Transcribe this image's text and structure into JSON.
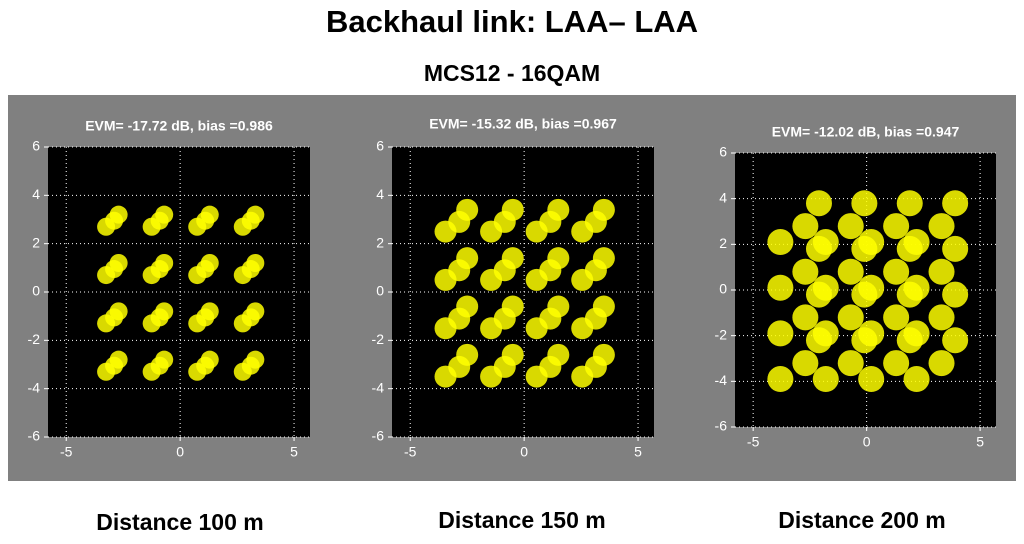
{
  "title": "Backhaul link: LAA– LAA",
  "subtitle": "MCS12 - 16QAM",
  "chart_data": [
    {
      "type": "scatter",
      "title": "EVM= -17.72 dB, bias =0.986",
      "xlabel": "Distance 100 m",
      "color": "#ffff00",
      "xlim": [
        -5.8,
        5.7
      ],
      "ylim": [
        -6,
        6
      ],
      "xticks": [
        -5,
        0,
        5
      ],
      "yticks": [
        -6,
        -4,
        -2,
        0,
        2,
        4,
        6
      ],
      "grid": true,
      "x": [
        -2.7,
        -3.25,
        -2.9,
        -0.7,
        -1.25,
        -0.9,
        1.3,
        0.75,
        1.1,
        3.3,
        2.75,
        3.1,
        -2.7,
        -3.25,
        -2.9,
        -0.7,
        -1.25,
        -0.9,
        1.3,
        0.75,
        1.1,
        3.3,
        2.75,
        3.1,
        -2.7,
        -3.25,
        -2.9,
        -0.7,
        -1.25,
        -0.9,
        1.3,
        0.75,
        1.1,
        3.3,
        2.75,
        3.1,
        -2.7,
        -3.25,
        -2.9,
        -0.7,
        -1.25,
        -0.9,
        1.3,
        0.75,
        1.1,
        3.3,
        2.75,
        3.1
      ],
      "y": [
        3.2,
        2.7,
        2.95,
        3.2,
        2.7,
        2.95,
        3.2,
        2.7,
        2.95,
        3.2,
        2.7,
        2.95,
        1.2,
        0.7,
        0.95,
        1.2,
        0.7,
        0.95,
        1.2,
        0.7,
        0.95,
        1.2,
        0.7,
        0.95,
        -0.8,
        -1.3,
        -1.05,
        -0.8,
        -1.3,
        -1.05,
        -0.8,
        -1.3,
        -1.05,
        -0.8,
        -1.3,
        -1.05,
        -2.8,
        -3.3,
        -3.05,
        -2.8,
        -3.3,
        -3.05,
        -2.8,
        -3.3,
        -3.05,
        -2.8,
        -3.3,
        -3.05
      ]
    },
    {
      "type": "scatter",
      "title": "EVM= -15.32 dB, bias =0.967",
      "xlabel": "Distance 150 m",
      "color": "#ffff00",
      "xlim": [
        -5.8,
        5.7
      ],
      "ylim": [
        -6,
        6
      ],
      "xticks": [
        -5,
        0,
        5
      ],
      "yticks": [
        -6,
        -4,
        -2,
        0,
        2,
        4,
        6
      ],
      "grid": true,
      "x": [
        -2.5,
        -3.45,
        -2.85,
        -0.5,
        -1.45,
        -0.85,
        1.5,
        0.55,
        1.15,
        3.5,
        2.55,
        3.15,
        -2.5,
        -3.45,
        -2.85,
        -0.5,
        -1.45,
        -0.85,
        1.5,
        0.55,
        1.15,
        3.5,
        2.55,
        3.15,
        -2.5,
        -3.45,
        -2.85,
        -0.5,
        -1.45,
        -0.85,
        1.5,
        0.55,
        1.15,
        3.5,
        2.55,
        3.15,
        -2.5,
        -3.45,
        -2.85,
        -0.5,
        -1.45,
        -0.85,
        1.5,
        0.55,
        1.15,
        3.5,
        2.55,
        3.15
      ],
      "y": [
        3.4,
        2.5,
        2.9,
        3.4,
        2.5,
        2.9,
        3.4,
        2.5,
        2.9,
        3.4,
        2.5,
        2.9,
        1.4,
        0.5,
        0.9,
        1.4,
        0.5,
        0.9,
        1.4,
        0.5,
        0.9,
        1.4,
        0.5,
        0.9,
        -0.6,
        -1.5,
        -1.1,
        -0.6,
        -1.5,
        -1.1,
        -0.6,
        -1.5,
        -1.1,
        -0.6,
        -1.5,
        -1.1,
        -2.6,
        -3.5,
        -3.1,
        -2.6,
        -3.5,
        -3.1,
        -2.6,
        -3.5,
        -3.1,
        -2.6,
        -3.5,
        -3.1
      ]
    },
    {
      "type": "scatter",
      "title": "EVM= -12.02 dB, bias =0.947",
      "xlabel": "Distance 200 m",
      "color": "#ffff00",
      "xlim": [
        -5.8,
        5.7
      ],
      "ylim": [
        -6,
        6
      ],
      "xticks": [
        -5,
        0,
        5
      ],
      "yticks": [
        -6,
        -4,
        -2,
        0,
        2,
        4,
        6
      ],
      "grid": true,
      "x": [
        -2.1,
        -3.8,
        -2.7,
        -0.1,
        -1.8,
        -0.7,
        1.9,
        0.2,
        1.3,
        3.9,
        2.2,
        3.3,
        -2.1,
        -3.8,
        -2.7,
        -0.1,
        -1.8,
        -0.7,
        1.9,
        0.2,
        1.3,
        3.9,
        2.2,
        3.3,
        -2.1,
        -3.8,
        -2.7,
        -0.1,
        -1.8,
        -0.7,
        1.9,
        0.2,
        1.3,
        3.9,
        2.2,
        3.3,
        -2.1,
        -3.8,
        -2.7,
        -0.1,
        -1.8,
        -0.7,
        1.9,
        0.2,
        1.3,
        3.9,
        2.2,
        3.3
      ],
      "y": [
        3.8,
        2.1,
        2.8,
        3.8,
        2.1,
        2.8,
        3.8,
        2.1,
        2.8,
        3.8,
        2.1,
        2.8,
        1.8,
        0.1,
        0.8,
        1.8,
        0.1,
        0.8,
        1.8,
        0.1,
        0.8,
        1.8,
        0.1,
        0.8,
        -0.2,
        -1.9,
        -1.2,
        -0.2,
        -1.9,
        -1.2,
        -0.2,
        -1.9,
        -1.2,
        -0.2,
        -1.9,
        -1.2,
        -2.2,
        -3.9,
        -3.2,
        -2.2,
        -3.9,
        -3.2,
        -2.2,
        -3.9,
        -3.2,
        -2.2,
        -3.9,
        -3.2
      ]
    }
  ]
}
